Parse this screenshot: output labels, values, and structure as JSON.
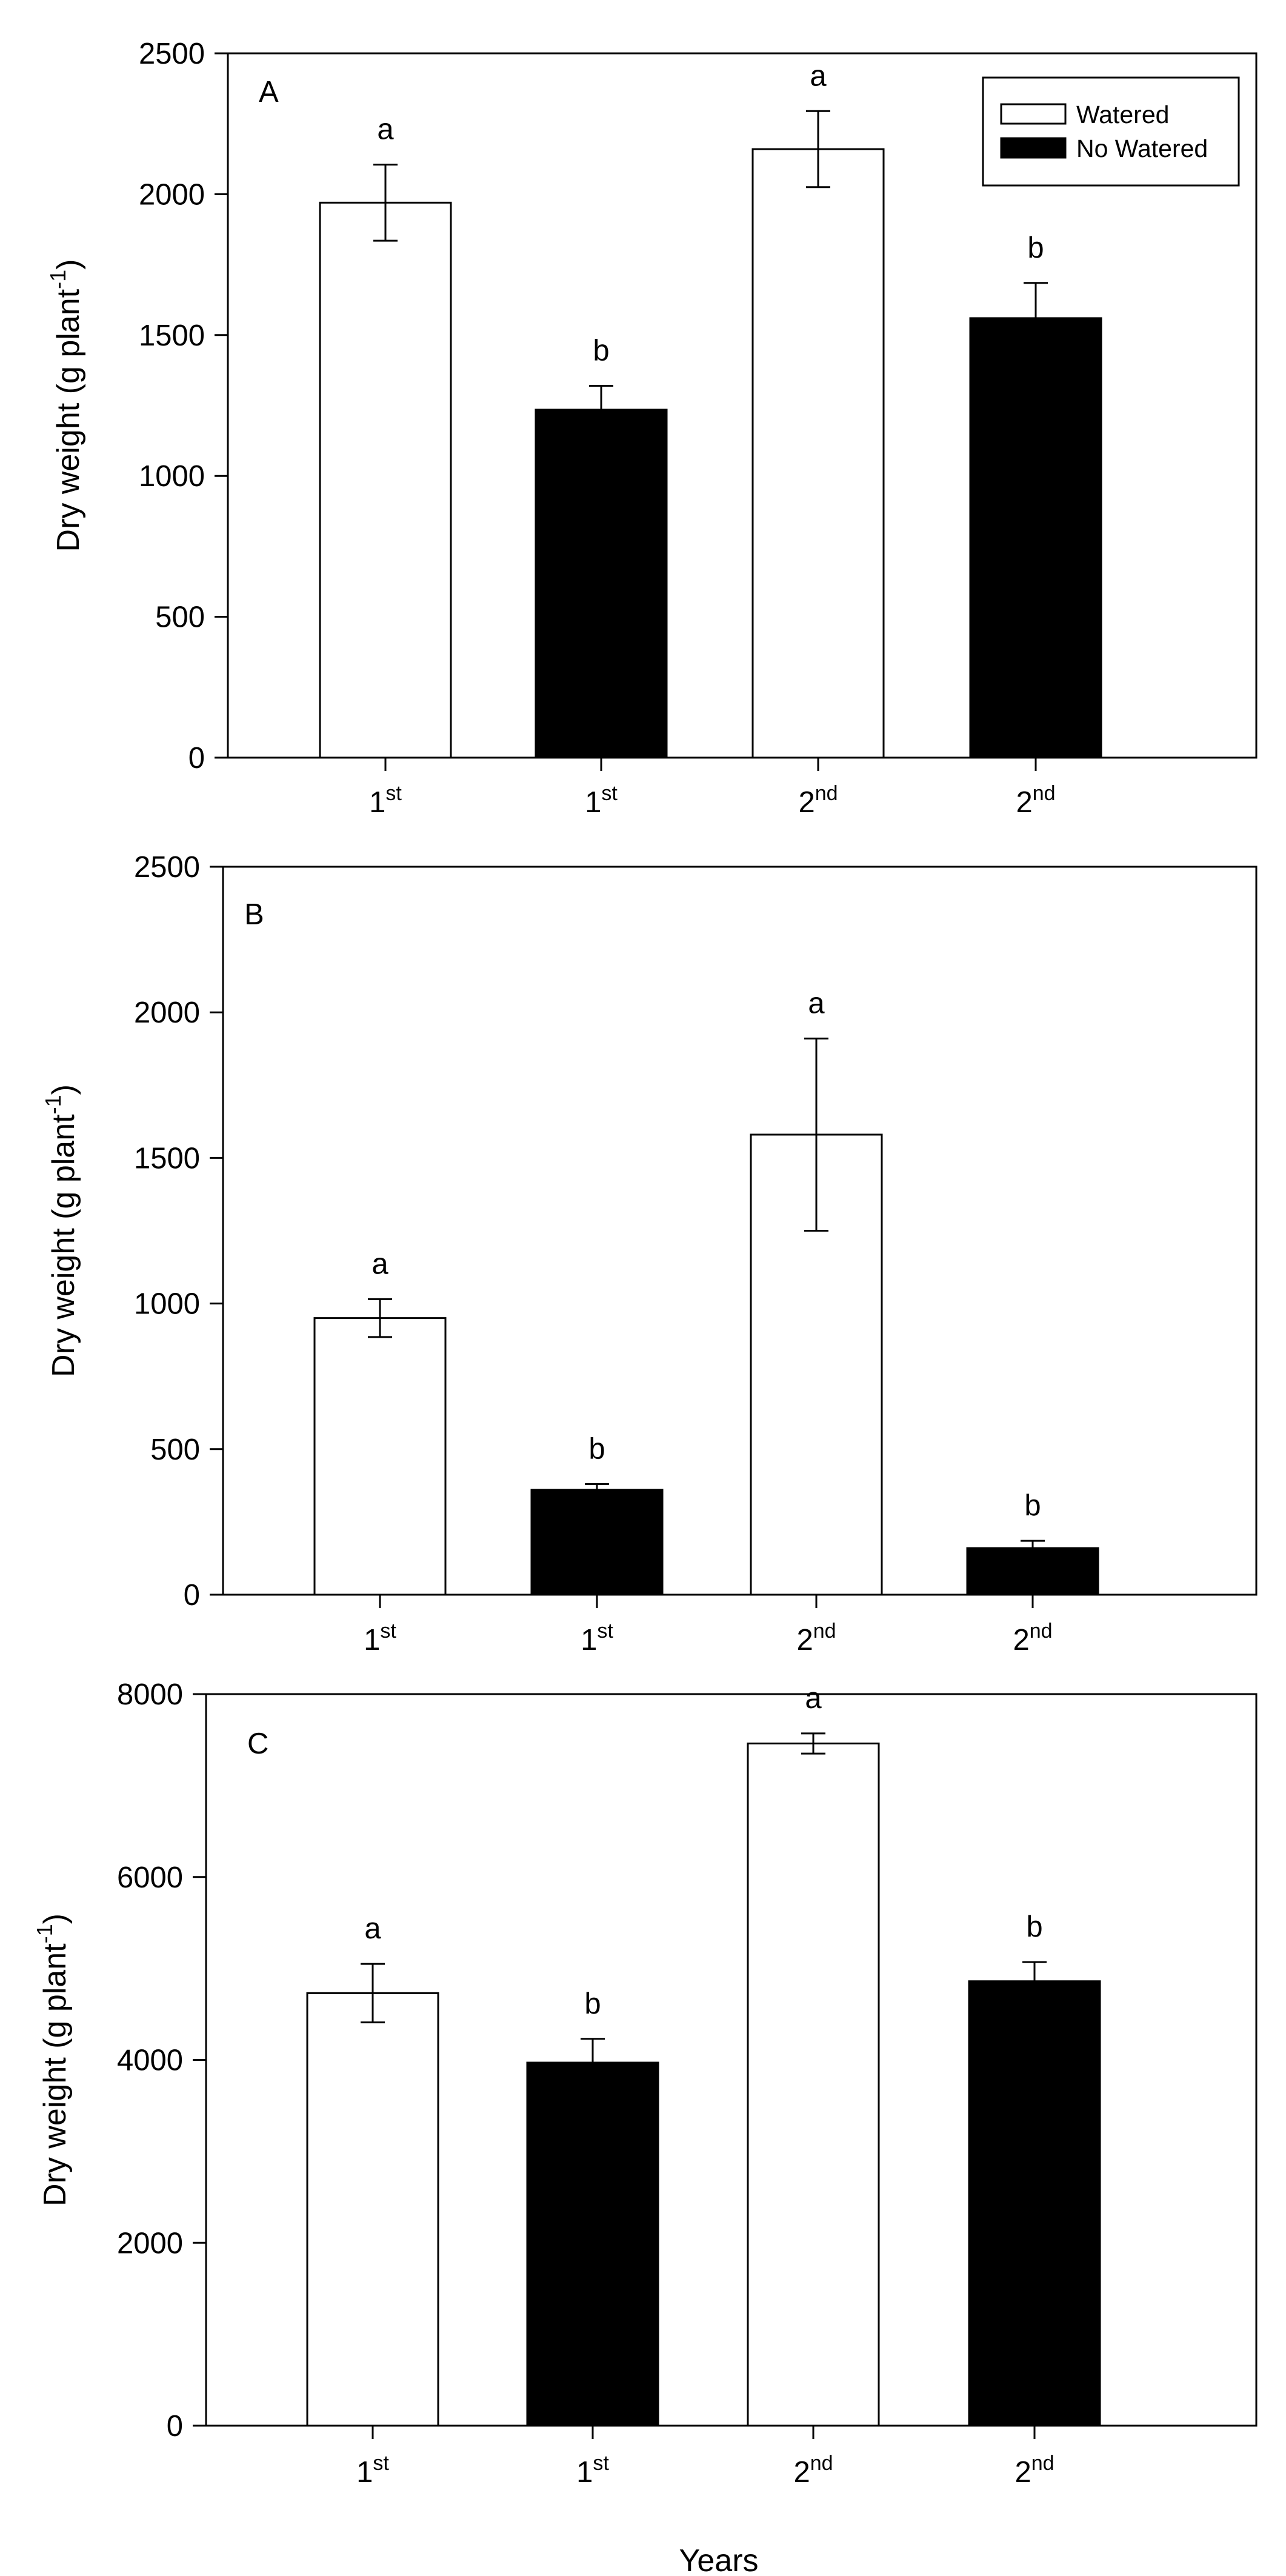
{
  "figure": {
    "x_title": "Years"
  },
  "legend": {
    "entries": [
      {
        "label": "Watered",
        "fill": "#ffffff"
      },
      {
        "label": "No Watered",
        "fill": "#000000"
      }
    ]
  },
  "chart_data": [
    {
      "type": "bar",
      "panel_label": "A",
      "ylabel": "Dry weight (g plant",
      "ylabel_sup": "-1",
      "ylabel_end": ")",
      "ylim": [
        0,
        2500
      ],
      "yticks": [
        0,
        500,
        1000,
        1500,
        2000,
        2500
      ],
      "bars": [
        {
          "label": "1",
          "sup": "st",
          "group": "Watered",
          "value": 1970,
          "error": 135,
          "sig": "a"
        },
        {
          "label": "1",
          "sup": "st",
          "group": "No Watered",
          "value": 1235,
          "error": 85,
          "sig": "b"
        },
        {
          "label": "2",
          "sup": "nd",
          "group": "Watered",
          "value": 2160,
          "error": 135,
          "sig": "a"
        },
        {
          "label": "2",
          "sup": "nd",
          "group": "No Watered",
          "value": 1560,
          "error": 125,
          "sig": "b"
        }
      ]
    },
    {
      "type": "bar",
      "panel_label": "B",
      "ylabel": "Dry weight (g plant",
      "ylabel_sup": "-1",
      "ylabel_end": ")",
      "ylim": [
        0,
        2500
      ],
      "yticks": [
        0,
        500,
        1000,
        1500,
        2000,
        2500
      ],
      "bars": [
        {
          "label": "1",
          "sup": "st",
          "group": "Watered",
          "value": 950,
          "error": 65,
          "sig": "a"
        },
        {
          "label": "1",
          "sup": "st",
          "group": "No Watered",
          "value": 360,
          "error": 20,
          "sig": "b"
        },
        {
          "label": "2",
          "sup": "nd",
          "group": "Watered",
          "value": 1580,
          "error": 330,
          "sig": "a"
        },
        {
          "label": "2",
          "sup": "nd",
          "group": "No Watered",
          "value": 160,
          "error": 25,
          "sig": "b"
        }
      ]
    },
    {
      "type": "bar",
      "panel_label": "C",
      "ylabel": "Dry weight (g plant",
      "ylabel_sup": "-1",
      "ylabel_end": ")",
      "ylim": [
        0,
        8000
      ],
      "yticks": [
        0,
        2000,
        4000,
        6000,
        8000
      ],
      "bars": [
        {
          "label": "1",
          "sup": "st",
          "group": "Watered",
          "value": 4730,
          "error": 320,
          "sig": "a"
        },
        {
          "label": "1",
          "sup": "st",
          "group": "No Watered",
          "value": 3970,
          "error": 260,
          "sig": "b"
        },
        {
          "label": "2",
          "sup": "nd",
          "group": "Watered",
          "value": 7460,
          "error": 110,
          "sig": "a"
        },
        {
          "label": "2",
          "sup": "nd",
          "group": "No Watered",
          "value": 4860,
          "error": 210,
          "sig": "b"
        }
      ]
    }
  ]
}
